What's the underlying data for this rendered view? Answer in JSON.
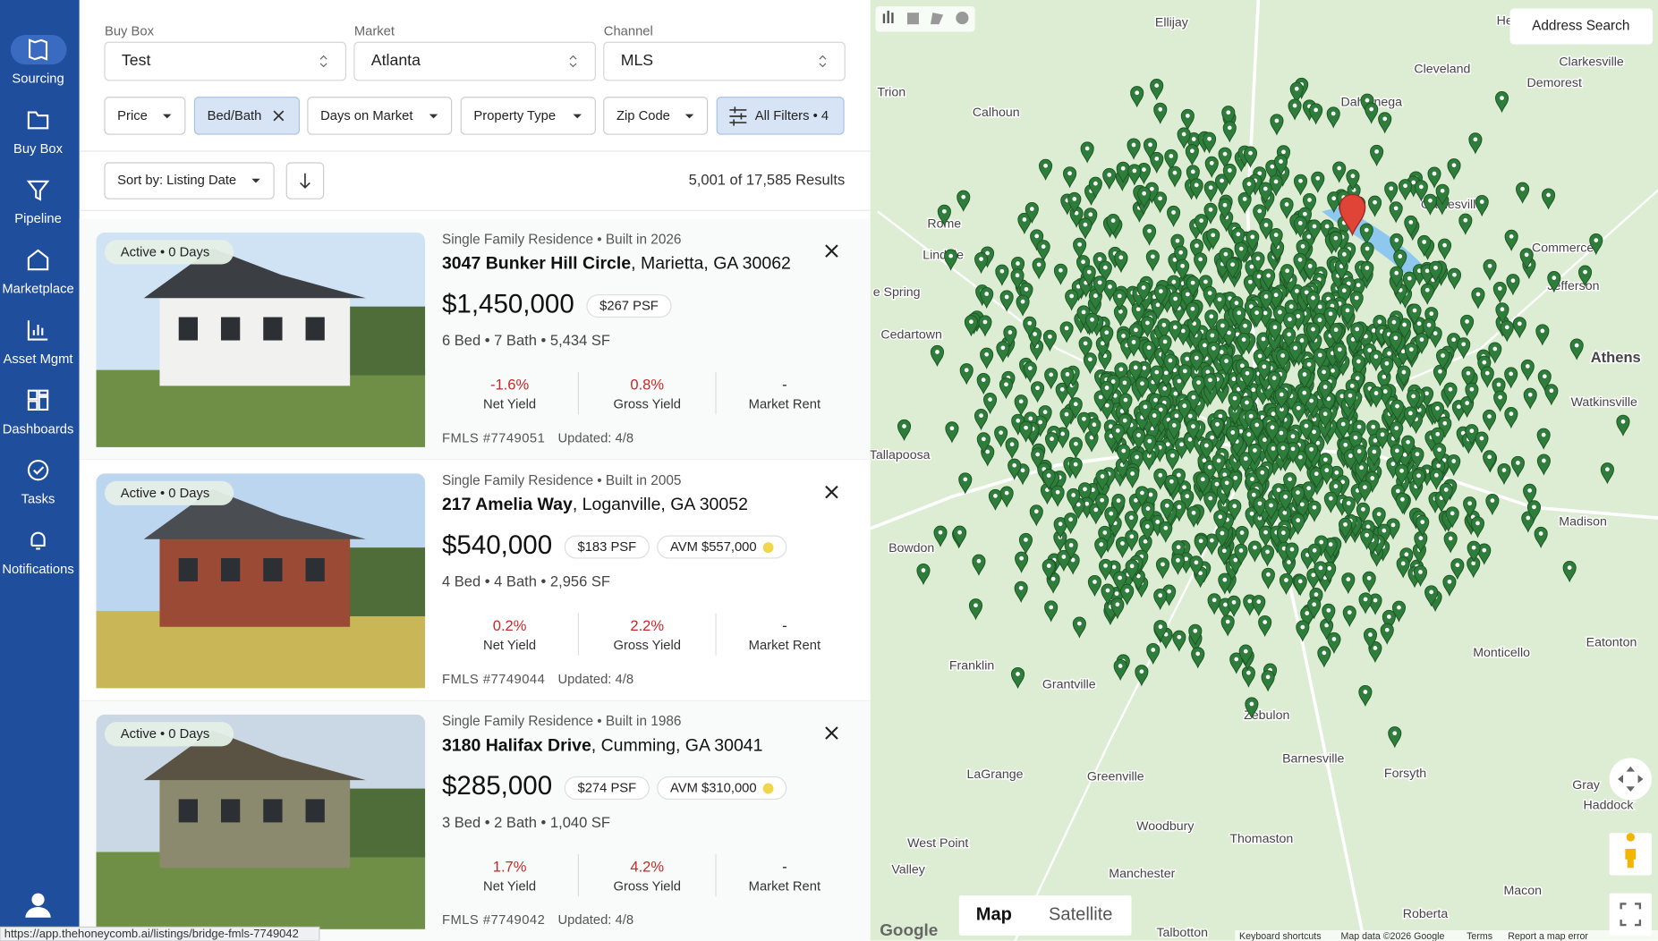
{
  "sidebar": {
    "items": [
      {
        "label": "Sourcing"
      },
      {
        "label": "Buy Box"
      },
      {
        "label": "Pipeline"
      },
      {
        "label": "Marketplace"
      },
      {
        "label": "Asset Mgmt"
      },
      {
        "label": "Dashboards"
      },
      {
        "label": "Tasks"
      },
      {
        "label": "Notifications"
      }
    ]
  },
  "selects": [
    {
      "label": "Buy Box",
      "value": "Test"
    },
    {
      "label": "Market",
      "value": "Atlanta"
    },
    {
      "label": "Channel",
      "value": "MLS"
    }
  ],
  "chips": [
    "Price",
    "Bed/Bath",
    "Days on Market",
    "Property Type",
    "Zip Code",
    "All Filters • 4"
  ],
  "sort": "Sort by: Listing Date",
  "results": "5,001 of 17,585 Results",
  "listings": [
    {
      "badge": "Active • 0 Days",
      "meta": "Single Family Residence • Built in 2026",
      "street": "3047 Bunker Hill Circle",
      "city": ", Marietta, GA 30062",
      "price": "$1,450,000",
      "psf": "$267 PSF",
      "specs": "6 Bed • 7 Bath • 5,434 SF",
      "metrics": [
        {
          "value": "-1.6%",
          "label": "Net Yield"
        },
        {
          "value": "0.8%",
          "label": "Gross Yield"
        },
        {
          "value": "-",
          "label": "Market Rent"
        }
      ],
      "mls": "FMLS #7749051",
      "updated": "Updated: 4/8"
    },
    {
      "badge": "Active • 0 Days",
      "meta": "Single Family Residence • Built in 2005",
      "street": "217 Amelia Way",
      "city": ", Loganville, GA 30052",
      "price": "$540,000",
      "psf": "$183 PSF",
      "avm": "AVM $557,000",
      "specs": "4 Bed • 4 Bath • 2,956 SF",
      "metrics": [
        {
          "value": "0.2%",
          "label": "Net Yield"
        },
        {
          "value": "2.2%",
          "label": "Gross Yield"
        },
        {
          "value": "-",
          "label": "Market Rent"
        }
      ],
      "mls": "FMLS #7749044",
      "updated": "Updated: 4/8"
    },
    {
      "badge": "Active • 0 Days",
      "meta": "Single Family Residence • Built in 1986",
      "street": "3180 Halifax Drive",
      "city": ", Cumming, GA 30041",
      "price": "$285,000",
      "psf": "$274 PSF",
      "avm": "AVM $310,000",
      "specs": "3 Bed • 2 Bath • 1,040 SF",
      "metrics": [
        {
          "value": "1.7%",
          "label": "Net Yield"
        },
        {
          "value": "4.2%",
          "label": "Gross Yield"
        },
        {
          "value": "-",
          "label": "Market Rent"
        }
      ],
      "mls": "FMLS #7749042",
      "updated": "Updated: 4/8"
    }
  ],
  "map": {
    "search": "Address Search",
    "types": [
      "Map",
      "Satellite"
    ],
    "logo": "Google",
    "places": [
      "Ellijay",
      "Helen",
      "Cleveland",
      "Demorest",
      "Clarkesville",
      "Trion",
      "Dahlonega",
      "Calhoun",
      "Gainesville",
      "Rome",
      "Commerce",
      "Lindale",
      "Jefferson",
      "e Spring",
      "Cedartown",
      "Athens",
      "Watkinsville",
      "Tallapoosa",
      "Bowdon",
      "Madison",
      "Franklin",
      "Grantville",
      "Monticello",
      "Eatonton",
      "Zebulon",
      "Barnesville",
      "Forsyth",
      "Gray",
      "Haddock",
      "LaGrange",
      "Greenville",
      "Woodbury",
      "Thomaston",
      "West Point",
      "Manchester",
      "Valley",
      "Macon",
      "Roberta",
      "Talbotton"
    ],
    "attribution": [
      "Keyboard shortcuts",
      "Map data ©2026 Google",
      "Terms",
      "Report a map error"
    ]
  },
  "status_url": "https://app.thehoneycomb.ai/listings/bridge-fmls-7749042"
}
